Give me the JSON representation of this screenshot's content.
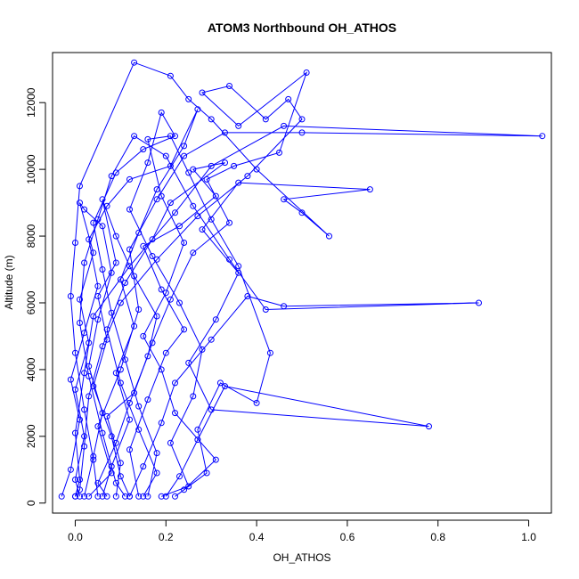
{
  "chart_data": {
    "type": "scatter",
    "title": "ATOM3 Northbound OH_ATHOS",
    "xlabel": "OH_ATHOS",
    "ylabel": "Altitude (m)",
    "xlim": [
      -0.05,
      1.05
    ],
    "ylim": [
      -300,
      13500
    ],
    "x_ticks": [
      0.0,
      0.2,
      0.4,
      0.6,
      0.8,
      1.0
    ],
    "x_tick_labels": [
      "0.0",
      "0.2",
      "0.4",
      "0.6",
      "0.8",
      "1.0"
    ],
    "y_ticks": [
      0,
      2000,
      4000,
      6000,
      8000,
      10000,
      12000
    ],
    "y_tick_labels": [
      "0",
      "2000",
      "4000",
      "6000",
      "8000",
      "10000",
      "12000"
    ],
    "marker": "open-circle",
    "connected": true,
    "grid": false,
    "legend": "none",
    "color": "#0000ff",
    "series": [
      {
        "values": [
          {
            "x": 0.03,
            "y": 200
          },
          {
            "x": 0.08,
            "y": 900
          },
          {
            "x": 0.05,
            "y": 2300
          },
          {
            "x": 0.1,
            "y": 4000
          },
          {
            "x": 0.14,
            "y": 5800
          },
          {
            "x": 0.12,
            "y": 7600
          },
          {
            "x": 0.18,
            "y": 9100
          },
          {
            "x": 0.24,
            "y": 10400
          },
          {
            "x": 0.33,
            "y": 11100
          },
          {
            "x": 0.5,
            "y": 11100
          },
          {
            "x": 1.03,
            "y": 11000
          },
          {
            "x": 0.46,
            "y": 11300
          },
          {
            "x": 0.3,
            "y": 10100
          },
          {
            "x": 0.22,
            "y": 8700
          },
          {
            "x": 0.12,
            "y": 7100
          },
          {
            "x": 0.04,
            "y": 5600
          },
          {
            "x": 0.02,
            "y": 3900
          },
          {
            "x": 0.0,
            "y": 2100
          },
          {
            "x": 0.01,
            "y": 700
          },
          {
            "x": 0.0,
            "y": 200
          }
        ]
      },
      {
        "values": [
          {
            "x": 0.12,
            "y": 200
          },
          {
            "x": 0.15,
            "y": 1100
          },
          {
            "x": 0.19,
            "y": 2400
          },
          {
            "x": 0.22,
            "y": 3600
          },
          {
            "x": 0.3,
            "y": 4900
          },
          {
            "x": 0.38,
            "y": 6200
          },
          {
            "x": 0.46,
            "y": 5900
          },
          {
            "x": 0.89,
            "y": 6000
          },
          {
            "x": 0.42,
            "y": 5800
          },
          {
            "x": 0.34,
            "y": 7300
          },
          {
            "x": 0.26,
            "y": 8900
          },
          {
            "x": 0.2,
            "y": 10400
          },
          {
            "x": 0.13,
            "y": 11000
          },
          {
            "x": 0.08,
            "y": 9800
          },
          {
            "x": 0.05,
            "y": 8500
          },
          {
            "x": 0.02,
            "y": 7200
          },
          {
            "x": 0.01,
            "y": 5400
          },
          {
            "x": 0.03,
            "y": 3800
          },
          {
            "x": 0.06,
            "y": 2100
          },
          {
            "x": 0.09,
            "y": 600
          },
          {
            "x": 0.11,
            "y": 200
          }
        ]
      },
      {
        "values": [
          {
            "x": 0.2,
            "y": 200
          },
          {
            "x": 0.23,
            "y": 800
          },
          {
            "x": 0.27,
            "y": 1900
          },
          {
            "x": 0.33,
            "y": 3500
          },
          {
            "x": 0.78,
            "y": 2300
          },
          {
            "x": 0.3,
            "y": 2800
          },
          {
            "x": 0.25,
            "y": 4200
          },
          {
            "x": 0.31,
            "y": 5500
          },
          {
            "x": 0.36,
            "y": 6900
          },
          {
            "x": 0.28,
            "y": 8200
          },
          {
            "x": 0.36,
            "y": 9600
          },
          {
            "x": 0.65,
            "y": 9400
          },
          {
            "x": 0.46,
            "y": 9100
          },
          {
            "x": 0.5,
            "y": 8700
          },
          {
            "x": 0.56,
            "y": 8000
          },
          {
            "x": 0.4,
            "y": 10000
          },
          {
            "x": 0.3,
            "y": 11500
          },
          {
            "x": 0.25,
            "y": 12100
          },
          {
            "x": 0.21,
            "y": 12800
          },
          {
            "x": 0.13,
            "y": 13200
          },
          {
            "x": 0.01,
            "y": 9500
          },
          {
            "x": 0.0,
            "y": 7800
          },
          {
            "x": -0.01,
            "y": 6200
          },
          {
            "x": 0.0,
            "y": 4500
          },
          {
            "x": 0.02,
            "y": 2800
          },
          {
            "x": 0.04,
            "y": 1300
          },
          {
            "x": 0.05,
            "y": 200
          }
        ]
      },
      {
        "values": [
          {
            "x": 0.09,
            "y": 200
          },
          {
            "x": 0.1,
            "y": 1200
          },
          {
            "x": 0.07,
            "y": 2600
          },
          {
            "x": 0.13,
            "y": 3300
          },
          {
            "x": 0.17,
            "y": 4800
          },
          {
            "x": 0.21,
            "y": 6100
          },
          {
            "x": 0.26,
            "y": 7500
          },
          {
            "x": 0.34,
            "y": 8400
          },
          {
            "x": 0.29,
            "y": 9700
          },
          {
            "x": 0.35,
            "y": 10100
          },
          {
            "x": 0.45,
            "y": 10500
          },
          {
            "x": 0.51,
            "y": 12900
          },
          {
            "x": 0.36,
            "y": 11300
          },
          {
            "x": 0.28,
            "y": 12300
          },
          {
            "x": 0.34,
            "y": 12500
          },
          {
            "x": 0.42,
            "y": 11500
          },
          {
            "x": 0.47,
            "y": 12100
          },
          {
            "x": 0.5,
            "y": 11500
          },
          {
            "x": 0.38,
            "y": 9800
          },
          {
            "x": 0.27,
            "y": 8600
          },
          {
            "x": 0.18,
            "y": 7300
          },
          {
            "x": 0.1,
            "y": 6000
          },
          {
            "x": 0.06,
            "y": 4700
          },
          {
            "x": 0.03,
            "y": 3200
          },
          {
            "x": 0.02,
            "y": 1700
          },
          {
            "x": 0.01,
            "y": 400
          },
          {
            "x": 0.0,
            "y": 200
          }
        ]
      },
      {
        "values": [
          {
            "x": 0.16,
            "y": 200
          },
          {
            "x": 0.18,
            "y": 1500
          },
          {
            "x": 0.14,
            "y": 2900
          },
          {
            "x": 0.11,
            "y": 4300
          },
          {
            "x": 0.08,
            "y": 5700
          },
          {
            "x": 0.06,
            "y": 7000
          },
          {
            "x": 0.04,
            "y": 8400
          },
          {
            "x": 0.09,
            "y": 9900
          },
          {
            "x": 0.15,
            "y": 10600
          },
          {
            "x": 0.22,
            "y": 11000
          },
          {
            "x": 0.19,
            "y": 11700
          },
          {
            "x": 0.16,
            "y": 10200
          },
          {
            "x": 0.12,
            "y": 8800
          },
          {
            "x": 0.17,
            "y": 7400
          },
          {
            "x": 0.23,
            "y": 6000
          },
          {
            "x": 0.28,
            "y": 4600
          },
          {
            "x": 0.26,
            "y": 3200
          },
          {
            "x": 0.21,
            "y": 1800
          },
          {
            "x": 0.25,
            "y": 500
          },
          {
            "x": 0.19,
            "y": 200
          }
        ]
      },
      {
        "values": [
          {
            "x": -0.03,
            "y": 200
          },
          {
            "x": -0.01,
            "y": 1000
          },
          {
            "x": 0.01,
            "y": 2500
          },
          {
            "x": -0.01,
            "y": 3700
          },
          {
            "x": 0.02,
            "y": 5100
          },
          {
            "x": 0.05,
            "y": 6500
          },
          {
            "x": 0.03,
            "y": 7900
          },
          {
            "x": 0.07,
            "y": 8900
          },
          {
            "x": 0.12,
            "y": 9700
          },
          {
            "x": 0.21,
            "y": 10100
          },
          {
            "x": 0.27,
            "y": 11800
          },
          {
            "x": 0.24,
            "y": 10700
          },
          {
            "x": 0.18,
            "y": 9400
          },
          {
            "x": 0.14,
            "y": 8100
          },
          {
            "x": 0.1,
            "y": 6700
          },
          {
            "x": 0.13,
            "y": 5300
          },
          {
            "x": 0.09,
            "y": 3900
          },
          {
            "x": 0.12,
            "y": 2500
          },
          {
            "x": 0.08,
            "y": 1100
          },
          {
            "x": 0.06,
            "y": 200
          }
        ]
      },
      {
        "values": [
          {
            "x": 0.14,
            "y": 200
          },
          {
            "x": 0.12,
            "y": 1600
          },
          {
            "x": 0.16,
            "y": 3100
          },
          {
            "x": 0.2,
            "y": 4500
          },
          {
            "x": 0.24,
            "y": 5200
          },
          {
            "x": 0.19,
            "y": 6400
          },
          {
            "x": 0.15,
            "y": 7700
          },
          {
            "x": 0.23,
            "y": 8300
          },
          {
            "x": 0.31,
            "y": 9200
          },
          {
            "x": 0.26,
            "y": 10000
          },
          {
            "x": 0.33,
            "y": 10200
          },
          {
            "x": 0.21,
            "y": 9000
          },
          {
            "x": 0.17,
            "y": 7900
          },
          {
            "x": 0.11,
            "y": 6600
          },
          {
            "x": 0.07,
            "y": 5200
          },
          {
            "x": 0.1,
            "y": 3600
          },
          {
            "x": 0.14,
            "y": 2200
          },
          {
            "x": 0.18,
            "y": 900
          },
          {
            "x": 0.15,
            "y": 200
          }
        ]
      },
      {
        "values": [
          {
            "x": 0.02,
            "y": 200
          },
          {
            "x": 0.04,
            "y": 1400
          },
          {
            "x": 0.06,
            "y": 2700
          },
          {
            "x": 0.03,
            "y": 4100
          },
          {
            "x": 0.05,
            "y": 5500
          },
          {
            "x": 0.08,
            "y": 6900
          },
          {
            "x": 0.06,
            "y": 8300
          },
          {
            "x": 0.02,
            "y": 8800
          },
          {
            "x": 0.01,
            "y": 9000
          },
          {
            "x": 0.04,
            "y": 7500
          },
          {
            "x": 0.01,
            "y": 6100
          },
          {
            "x": 0.03,
            "y": 4800
          },
          {
            "x": 0.0,
            "y": 3400
          },
          {
            "x": 0.02,
            "y": 2000
          },
          {
            "x": 0.0,
            "y": 700
          },
          {
            "x": 0.01,
            "y": 200
          }
        ]
      },
      {
        "values": [
          {
            "x": 0.24,
            "y": 400
          },
          {
            "x": 0.31,
            "y": 1300
          },
          {
            "x": 0.22,
            "y": 2700
          },
          {
            "x": 0.19,
            "y": 4000
          },
          {
            "x": 0.15,
            "y": 5000
          },
          {
            "x": 0.2,
            "y": 6300
          },
          {
            "x": 0.24,
            "y": 7800
          },
          {
            "x": 0.19,
            "y": 9200
          },
          {
            "x": 0.16,
            "y": 10900
          },
          {
            "x": 0.21,
            "y": 11000
          },
          {
            "x": 0.25,
            "y": 9900
          },
          {
            "x": 0.3,
            "y": 8500
          },
          {
            "x": 0.36,
            "y": 7100
          },
          {
            "x": 0.43,
            "y": 4500
          },
          {
            "x": 0.4,
            "y": 3000
          },
          {
            "x": 0.32,
            "y": 3600
          },
          {
            "x": 0.27,
            "y": 2200
          },
          {
            "x": 0.29,
            "y": 900
          },
          {
            "x": 0.22,
            "y": 200
          }
        ]
      },
      {
        "values": [
          {
            "x": 0.07,
            "y": 200
          },
          {
            "x": 0.05,
            "y": 600
          },
          {
            "x": 0.09,
            "y": 1800
          },
          {
            "x": 0.12,
            "y": 3000
          },
          {
            "x": 0.16,
            "y": 4400
          },
          {
            "x": 0.18,
            "y": 5600
          },
          {
            "x": 0.13,
            "y": 6800
          },
          {
            "x": 0.09,
            "y": 8000
          },
          {
            "x": 0.06,
            "y": 9100
          },
          {
            "x": 0.09,
            "y": 7200
          },
          {
            "x": 0.05,
            "y": 6200
          },
          {
            "x": 0.07,
            "y": 4900
          },
          {
            "x": 0.04,
            "y": 3500
          },
          {
            "x": 0.08,
            "y": 2000
          },
          {
            "x": 0.1,
            "y": 800
          },
          {
            "x": 0.12,
            "y": 200
          }
        ]
      }
    ]
  }
}
